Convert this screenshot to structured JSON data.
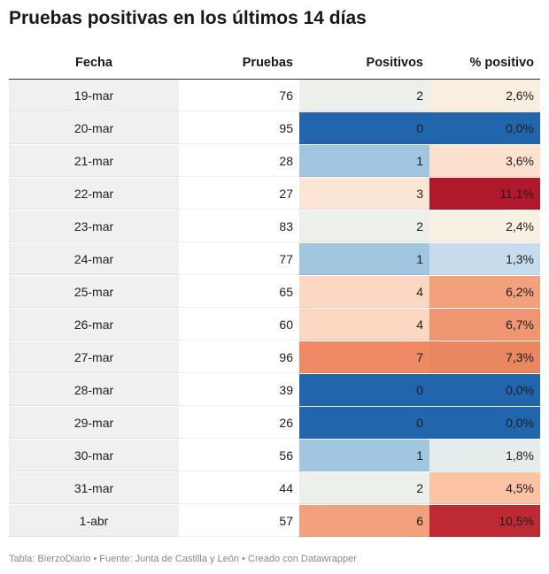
{
  "title": "Pruebas positivas en los últimos 14 días",
  "headers": {
    "fecha": "Fecha",
    "pruebas": "Pruebas",
    "positivos": "Positivos",
    "pct": "% positivo"
  },
  "rows": [
    {
      "fecha": "19-mar",
      "pruebas": "76",
      "positivos": "2",
      "pct": "2,6%"
    },
    {
      "fecha": "20-mar",
      "pruebas": "95",
      "positivos": "0",
      "pct": "0,0%"
    },
    {
      "fecha": "21-mar",
      "pruebas": "28",
      "positivos": "1",
      "pct": "3,6%"
    },
    {
      "fecha": "22-mar",
      "pruebas": "27",
      "positivos": "3",
      "pct": "11,1%"
    },
    {
      "fecha": "23-mar",
      "pruebas": "83",
      "positivos": "2",
      "pct": "2,4%"
    },
    {
      "fecha": "24-mar",
      "pruebas": "77",
      "positivos": "1",
      "pct": "1,3%"
    },
    {
      "fecha": "25-mar",
      "pruebas": "65",
      "positivos": "4",
      "pct": "6,2%"
    },
    {
      "fecha": "26-mar",
      "pruebas": "60",
      "positivos": "4",
      "pct": "6,7%"
    },
    {
      "fecha": "27-mar",
      "pruebas": "96",
      "positivos": "7",
      "pct": "7,3%"
    },
    {
      "fecha": "28-mar",
      "pruebas": "39",
      "positivos": "0",
      "pct": "0,0%"
    },
    {
      "fecha": "29-mar",
      "pruebas": "26",
      "positivos": "0",
      "pct": "0,0%"
    },
    {
      "fecha": "30-mar",
      "pruebas": "56",
      "positivos": "1",
      "pct": "1,8%"
    },
    {
      "fecha": "31-mar",
      "pruebas": "44",
      "positivos": "2",
      "pct": "4,5%"
    },
    {
      "fecha": "1-abr",
      "pruebas": "57",
      "positivos": "6",
      "pct": "10,5%"
    }
  ],
  "colors": {
    "positivos": [
      "#edf0ea",
      "#2166ac",
      "#a0c6e0",
      "#fbe6d6",
      "#edf0ea",
      "#a0c6e0",
      "#fcd7c1",
      "#fcd7c1",
      "#ee8a66",
      "#2166ac",
      "#2166ac",
      "#a0c6e0",
      "#edf0ea",
      "#f3a17c"
    ],
    "pct": [
      "#f9efe1",
      "#2166ac",
      "#fde0cd",
      "#b2182b",
      "#f8f1e3",
      "#c6dcec",
      "#f3a17c",
      "#f09571",
      "#e98760",
      "#2166ac",
      "#2166ac",
      "#e5ecec",
      "#fcc2a4",
      "#bd2a33"
    ],
    "dark_text": [
      "positivos:1",
      "pct:1",
      "pct:3",
      "positivos:9",
      "pct:9",
      "positivos:10",
      "pct:10",
      "pct:13"
    ]
  },
  "chart_data": {
    "type": "table",
    "title": "Pruebas positivas en los últimos 14 días",
    "columns": [
      "Fecha",
      "Pruebas",
      "Positivos",
      "% positivo"
    ],
    "categories": [
      "19-mar",
      "20-mar",
      "21-mar",
      "22-mar",
      "23-mar",
      "24-mar",
      "25-mar",
      "26-mar",
      "27-mar",
      "28-mar",
      "29-mar",
      "30-mar",
      "31-mar",
      "1-abr"
    ],
    "series": [
      {
        "name": "Pruebas",
        "values": [
          76,
          95,
          28,
          27,
          83,
          77,
          65,
          60,
          96,
          39,
          26,
          56,
          44,
          57
        ]
      },
      {
        "name": "Positivos",
        "values": [
          2,
          0,
          1,
          3,
          2,
          1,
          4,
          4,
          7,
          0,
          0,
          1,
          2,
          6
        ]
      },
      {
        "name": "% positivo",
        "values": [
          2.6,
          0.0,
          3.6,
          11.1,
          2.4,
          1.3,
          6.2,
          6.7,
          7.3,
          0.0,
          0.0,
          1.8,
          4.5,
          10.5
        ]
      }
    ]
  },
  "footer": "Tabla: BierzoDiario • Fuente: Junta de Castilla y León • Creado con Datawrapper"
}
